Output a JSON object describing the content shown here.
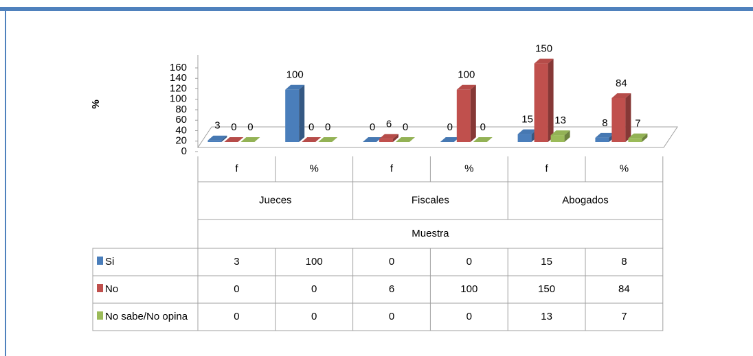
{
  "chart_data": {
    "type": "bar3d",
    "y_label": "%",
    "x_label": "Muestra",
    "groups": [
      "Jueces",
      "Fiscales",
      "Abogados"
    ],
    "categories": [
      "f",
      "%",
      "f",
      "%",
      "f",
      "%"
    ],
    "series": [
      {
        "name": "Si",
        "color": "#4a7ebb",
        "values": [
          3,
          100,
          0,
          0,
          15,
          8
        ]
      },
      {
        "name": "No",
        "color": "#c0504d",
        "values": [
          0,
          0,
          6,
          100,
          150,
          84
        ]
      },
      {
        "name": "No sabe/No opina",
        "color": "#9bbb59",
        "values": [
          0,
          0,
          0,
          0,
          13,
          7
        ]
      }
    ],
    "ylim": [
      0,
      160
    ],
    "yticks": [
      0,
      20,
      40,
      60,
      80,
      100,
      120,
      140,
      160
    ]
  }
}
